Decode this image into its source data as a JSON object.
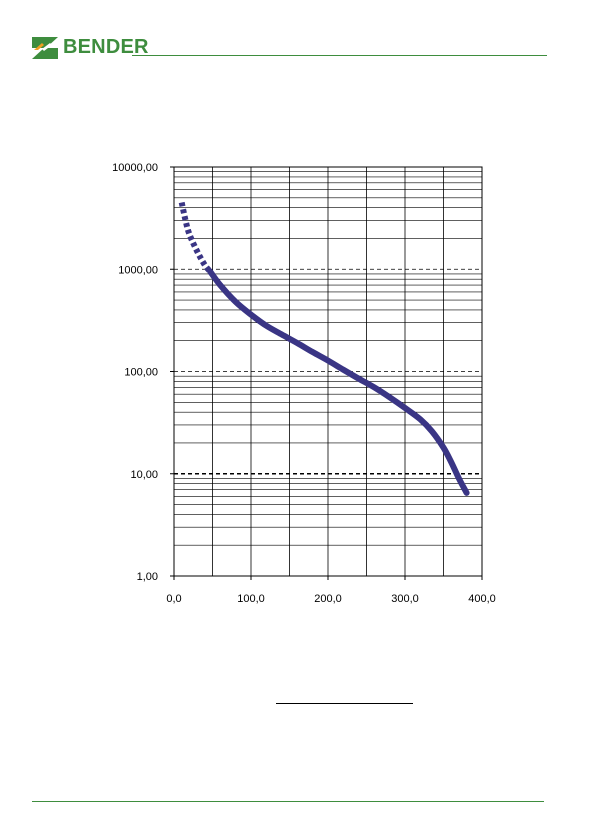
{
  "brand": {
    "name": "BENDER",
    "color": "#3e8d3e",
    "accent": "#f0a020"
  },
  "chart_data": {
    "type": "line",
    "title": "",
    "xlabel": "",
    "ylabel": "",
    "x_scale": "linear",
    "y_scale": "log",
    "xlim": [
      0,
      400
    ],
    "ylim": [
      1,
      10000
    ],
    "grid": true,
    "x_ticks": [
      "0,0",
      "100,0",
      "200,0",
      "300,0",
      "400,0"
    ],
    "y_ticks": [
      "1,00",
      "10,00",
      "100,00",
      "1000,00",
      "10000,00"
    ],
    "line_color": "#3a3585",
    "series": [
      {
        "style": "dotted",
        "points": [
          [
            10,
            4500
          ],
          [
            15,
            3000
          ],
          [
            20,
            2200
          ],
          [
            30,
            1500
          ],
          [
            40,
            1100
          ],
          [
            47,
            950
          ]
        ]
      },
      {
        "style": "solid",
        "points": [
          [
            47,
            950
          ],
          [
            60,
            700
          ],
          [
            80,
            480
          ],
          [
            100,
            360
          ],
          [
            120,
            280
          ],
          [
            140,
            230
          ],
          [
            160,
            190
          ],
          [
            180,
            155
          ],
          [
            200,
            128
          ],
          [
            220,
            104
          ],
          [
            240,
            85
          ],
          [
            260,
            70
          ],
          [
            280,
            56
          ],
          [
            300,
            44
          ],
          [
            320,
            34
          ],
          [
            335,
            26
          ],
          [
            350,
            18
          ],
          [
            360,
            13
          ],
          [
            370,
            9
          ],
          [
            380,
            6.5
          ]
        ]
      }
    ]
  }
}
